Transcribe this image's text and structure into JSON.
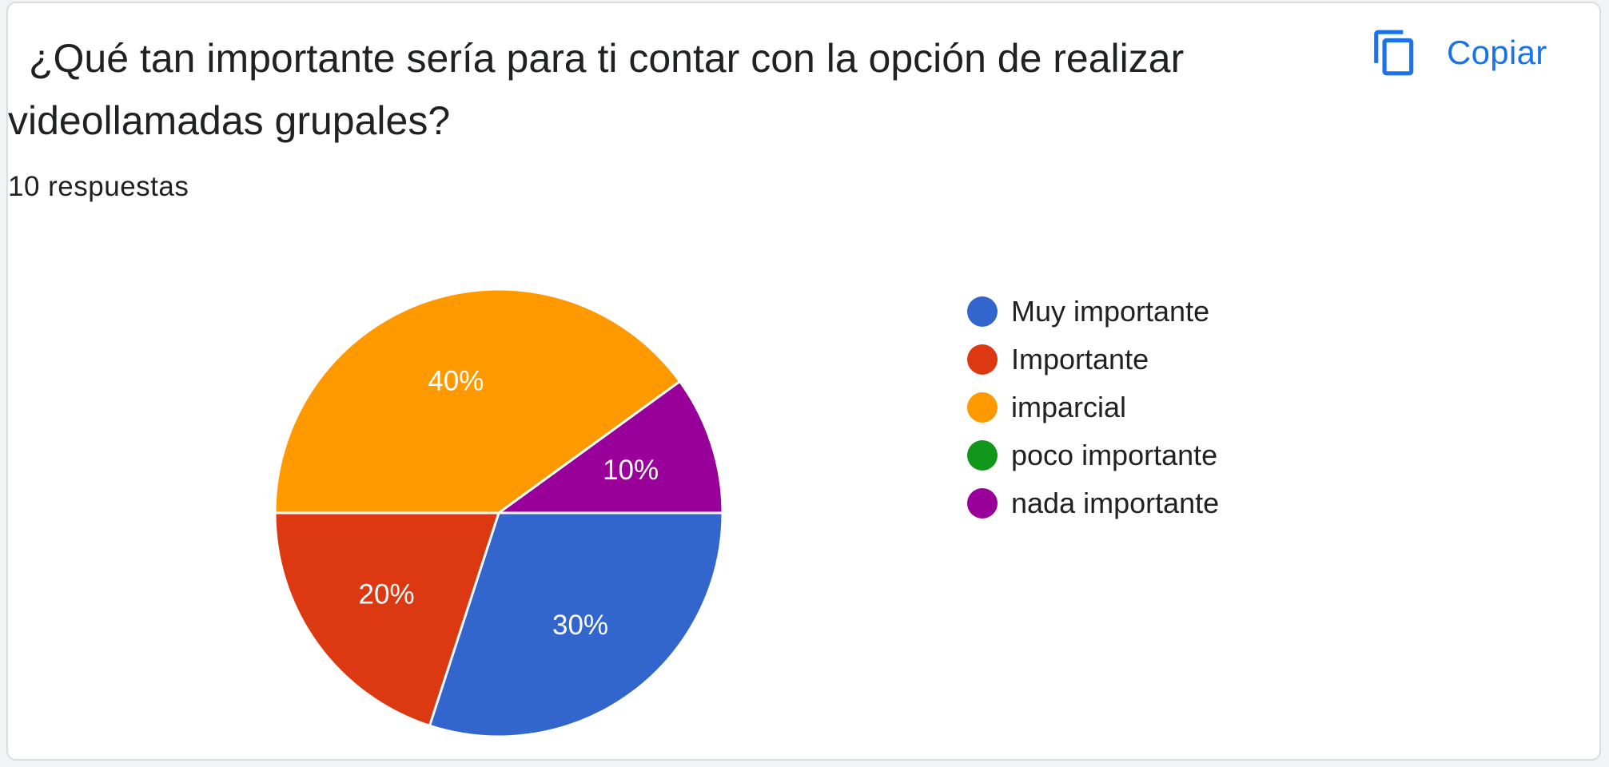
{
  "card": {
    "title": "¿Qué tan importante sería para ti contar con la opción de realizar videollamadas grupales?",
    "response_count": "10 respuestas",
    "copy_label": "Copiar",
    "copy_icon": "copy-content-icon"
  },
  "colors": {
    "accent": "#1a73e8"
  },
  "chart_data": {
    "type": "pie",
    "slices": [
      {
        "label": "Muy importante",
        "value": 30,
        "display": "30%",
        "color": "#3366cc"
      },
      {
        "label": "Importante",
        "value": 20,
        "display": "20%",
        "color": "#dc3912"
      },
      {
        "label": "imparcial",
        "value": 40,
        "display": "40%",
        "color": "#ff9900"
      },
      {
        "label": "poco importante",
        "value": 0,
        "display": "0%",
        "color": "#109618"
      },
      {
        "label": "nada importante",
        "value": 10,
        "display": "10%",
        "color": "#990099"
      }
    ],
    "legend_position": "right"
  }
}
